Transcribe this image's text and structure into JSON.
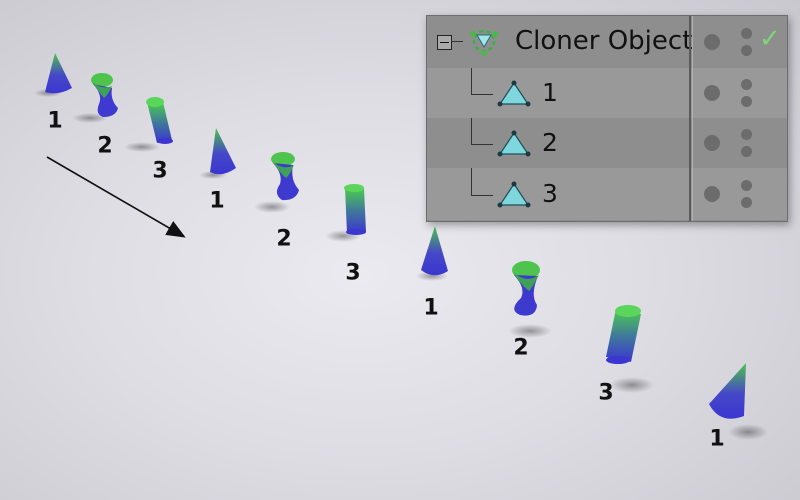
{
  "object_manager": {
    "root": {
      "label": "Cloner Object",
      "icon": "cloner-icon",
      "enabled_check": "✓"
    },
    "children": [
      {
        "label": "1",
        "icon": "triangle-null-icon"
      },
      {
        "label": "2",
        "icon": "triangle-null-icon"
      },
      {
        "label": "3",
        "icon": "triangle-null-icon"
      }
    ],
    "collapse_symbol": "−"
  },
  "scene": {
    "clone_labels": [
      "1",
      "2",
      "3",
      "1",
      "2",
      "3",
      "1",
      "2",
      "3",
      "1"
    ],
    "colors": {
      "shape_bottom": "#3e3ad6",
      "shape_top": "#4cc24a",
      "panel_bg": "#8e8e8e"
    }
  }
}
